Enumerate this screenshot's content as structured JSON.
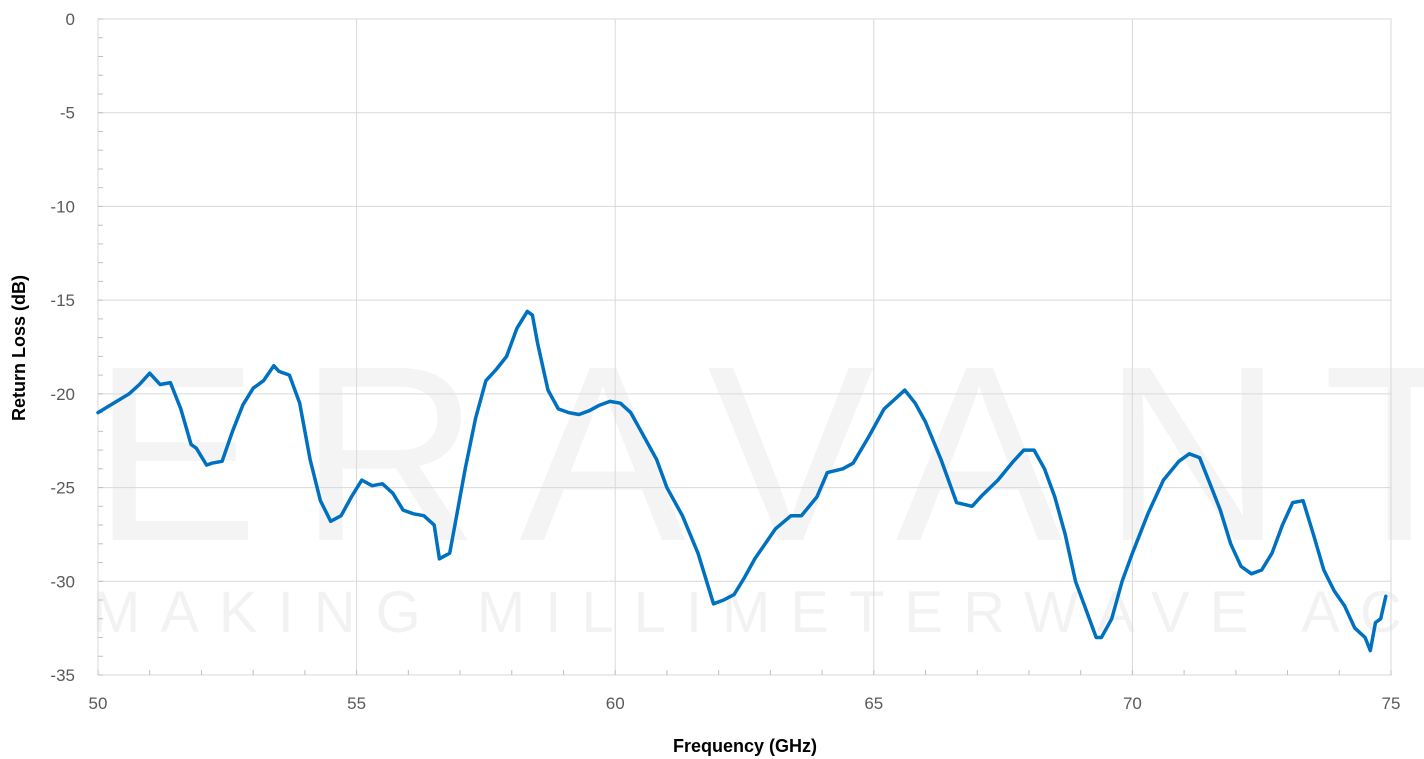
{
  "chart_data": {
    "type": "line",
    "title": "",
    "xlabel": "Frequency (GHz)",
    "ylabel": "Return Loss (dB)",
    "xlim": [
      50,
      75
    ],
    "ylim": [
      -35,
      0
    ],
    "xticks": [
      50,
      55,
      60,
      65,
      70,
      75
    ],
    "yticks": [
      0,
      -5,
      -10,
      -15,
      -20,
      -25,
      -30,
      -35
    ],
    "xtick_labels": [
      "50",
      "55",
      "60",
      "65",
      "70",
      "75"
    ],
    "ytick_labels": [
      "0",
      "-5",
      "-10",
      "-15",
      "-20",
      "-25",
      "-30",
      "-35"
    ],
    "grid": true,
    "line_color": "#0070C0",
    "grid_color": "#d9d9d9",
    "watermark": {
      "main": "ERAVANT",
      "tagline": "MAKING MILLIMETERWAVE ACCESSIBLE"
    },
    "series": [
      {
        "x": [
          50.0,
          50.3,
          50.6,
          50.8,
          51.0,
          51.2,
          51.4,
          51.6,
          51.8,
          51.9,
          52.1,
          52.2,
          52.4,
          52.6,
          52.8,
          53.0,
          53.2,
          53.4,
          53.5,
          53.7,
          53.9,
          54.1,
          54.3,
          54.5,
          54.7,
          54.9,
          55.1,
          55.3,
          55.5,
          55.7,
          55.9,
          56.1,
          56.3,
          56.5,
          56.6,
          56.8,
          56.9,
          57.1,
          57.3,
          57.5,
          57.7,
          57.9,
          58.1,
          58.3,
          58.4,
          58.5,
          58.7,
          58.9,
          59.1,
          59.3,
          59.5,
          59.7,
          59.9,
          60.1,
          60.3,
          60.5,
          60.8,
          61.0,
          61.3,
          61.6,
          61.9,
          62.1,
          62.3,
          62.5,
          62.7,
          62.9,
          63.1,
          63.4,
          63.6,
          63.9,
          64.1,
          64.4,
          64.6,
          64.9,
          65.2,
          65.4,
          65.6,
          65.8,
          66.0,
          66.3,
          66.6,
          66.9,
          67.1,
          67.4,
          67.7,
          67.9,
          68.1,
          68.3,
          68.5,
          68.7,
          68.9,
          69.1,
          69.3,
          69.4,
          69.6,
          69.8,
          70.0,
          70.3,
          70.6,
          70.9,
          71.1,
          71.3,
          71.5,
          71.7,
          71.9,
          72.1,
          72.3,
          72.5,
          72.7,
          72.9,
          73.1,
          73.3,
          73.5,
          73.7,
          73.9,
          74.1,
          74.3,
          74.5,
          74.6,
          74.7,
          74.8,
          74.9
        ],
        "y": [
          -21.0,
          -20.5,
          -20.0,
          -19.5,
          -18.9,
          -19.5,
          -19.4,
          -20.8,
          -22.7,
          -22.9,
          -23.8,
          -23.7,
          -23.6,
          -22.0,
          -20.6,
          -19.7,
          -19.3,
          -18.5,
          -18.8,
          -19.0,
          -20.5,
          -23.5,
          -25.7,
          -26.8,
          -26.5,
          -25.5,
          -24.6,
          -24.9,
          -24.8,
          -25.3,
          -26.2,
          -26.4,
          -26.5,
          -27.0,
          -28.8,
          -28.5,
          -27.0,
          -24.0,
          -21.3,
          -19.3,
          -18.7,
          -18.0,
          -16.5,
          -15.6,
          -15.8,
          -17.3,
          -19.8,
          -20.8,
          -21.0,
          -21.1,
          -20.9,
          -20.6,
          -20.4,
          -20.5,
          -21.0,
          -22.0,
          -23.5,
          -25.0,
          -26.5,
          -28.5,
          -31.2,
          -31.0,
          -30.7,
          -29.8,
          -28.8,
          -28.0,
          -27.2,
          -26.5,
          -26.5,
          -25.5,
          -24.2,
          -24.0,
          -23.7,
          -22.3,
          -20.8,
          -20.3,
          -19.8,
          -20.5,
          -21.5,
          -23.5,
          -25.8,
          -26.0,
          -25.4,
          -24.6,
          -23.6,
          -23.0,
          -23.0,
          -24.0,
          -25.5,
          -27.5,
          -30.0,
          -31.5,
          -33.0,
          -33.0,
          -32.0,
          -30.0,
          -28.5,
          -26.4,
          -24.6,
          -23.6,
          -23.2,
          -23.4,
          -24.8,
          -26.2,
          -28.0,
          -29.2,
          -29.6,
          -29.4,
          -28.5,
          -27.0,
          -25.8,
          -25.7,
          -27.5,
          -29.4,
          -30.5,
          -31.3,
          -32.5,
          -33.0,
          -33.7,
          -32.2,
          -32.0,
          -30.8
        ]
      }
    ]
  }
}
